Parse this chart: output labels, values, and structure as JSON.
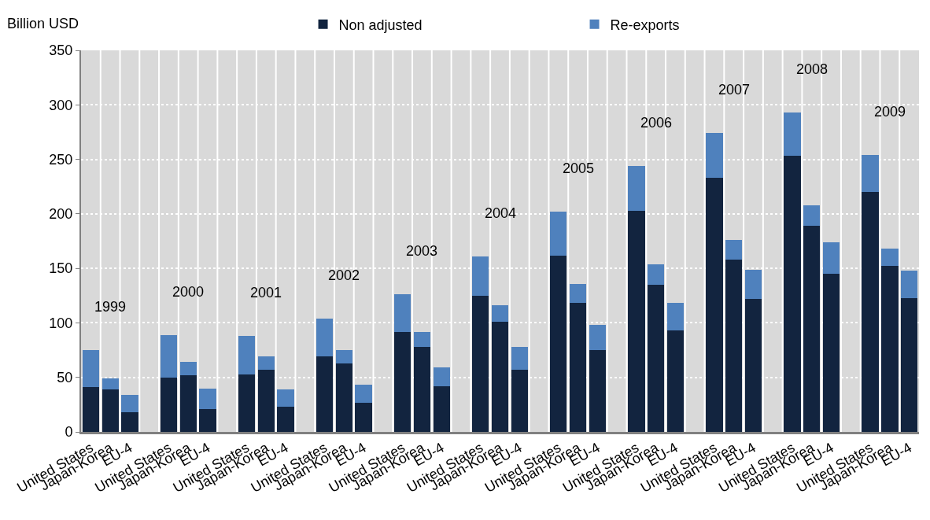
{
  "chart_data": {
    "type": "bar",
    "stacked": true,
    "ylabel": "Billion USD",
    "categories": [
      "United States",
      "Japan-Korea",
      "EU-4",
      null,
      "United States",
      "Japan-Korea",
      "EU-4",
      null,
      "United States",
      "Japan-Korea",
      "EU-4",
      null,
      "United States",
      "Japan-Korea",
      "EU-4",
      null,
      "United States",
      "Japan-Korea",
      "EU-4",
      null,
      "United States",
      "Japan-Korea",
      "EU-4",
      null,
      "United States",
      "Japan-Korea",
      "EU-4",
      null,
      "United States",
      "Japan-Korea",
      "EU-4",
      null,
      "United States",
      "Japan-Korea",
      "EU-4",
      null,
      "United States",
      "Japan-Korea",
      "EU-4",
      null,
      "United States",
      "Japan-Korea",
      "EU-4"
    ],
    "series": [
      {
        "name": "Non adjusted",
        "color": "#12243f",
        "values": [
          41,
          39,
          18,
          null,
          50,
          52,
          21,
          null,
          53,
          57,
          23,
          null,
          69,
          63,
          27,
          null,
          92,
          78,
          42,
          null,
          125,
          101,
          57,
          null,
          162,
          118,
          75,
          null,
          203,
          135,
          93,
          null,
          233,
          158,
          122,
          null,
          253,
          189,
          145,
          null,
          220,
          152,
          123
        ]
      },
      {
        "name": "Re-exports",
        "color": "#4f81bd",
        "values": [
          34,
          10,
          16,
          null,
          39,
          12,
          19,
          null,
          35,
          12,
          16,
          null,
          35,
          12,
          16,
          null,
          34,
          14,
          17,
          null,
          36,
          15,
          21,
          null,
          40,
          18,
          23,
          null,
          41,
          19,
          25,
          null,
          41,
          18,
          27,
          null,
          40,
          19,
          29,
          null,
          34,
          16,
          25
        ]
      }
    ],
    "annotations": [
      "1999",
      "2000",
      "2001",
      "2002",
      "2003",
      "2004",
      "2005",
      "2006",
      "2007",
      "2008",
      "2009"
    ],
    "ylim": [
      0,
      350
    ],
    "yticks": [
      0,
      50,
      100,
      150,
      200,
      250,
      300,
      350
    ],
    "grid": true,
    "legend": "top"
  }
}
